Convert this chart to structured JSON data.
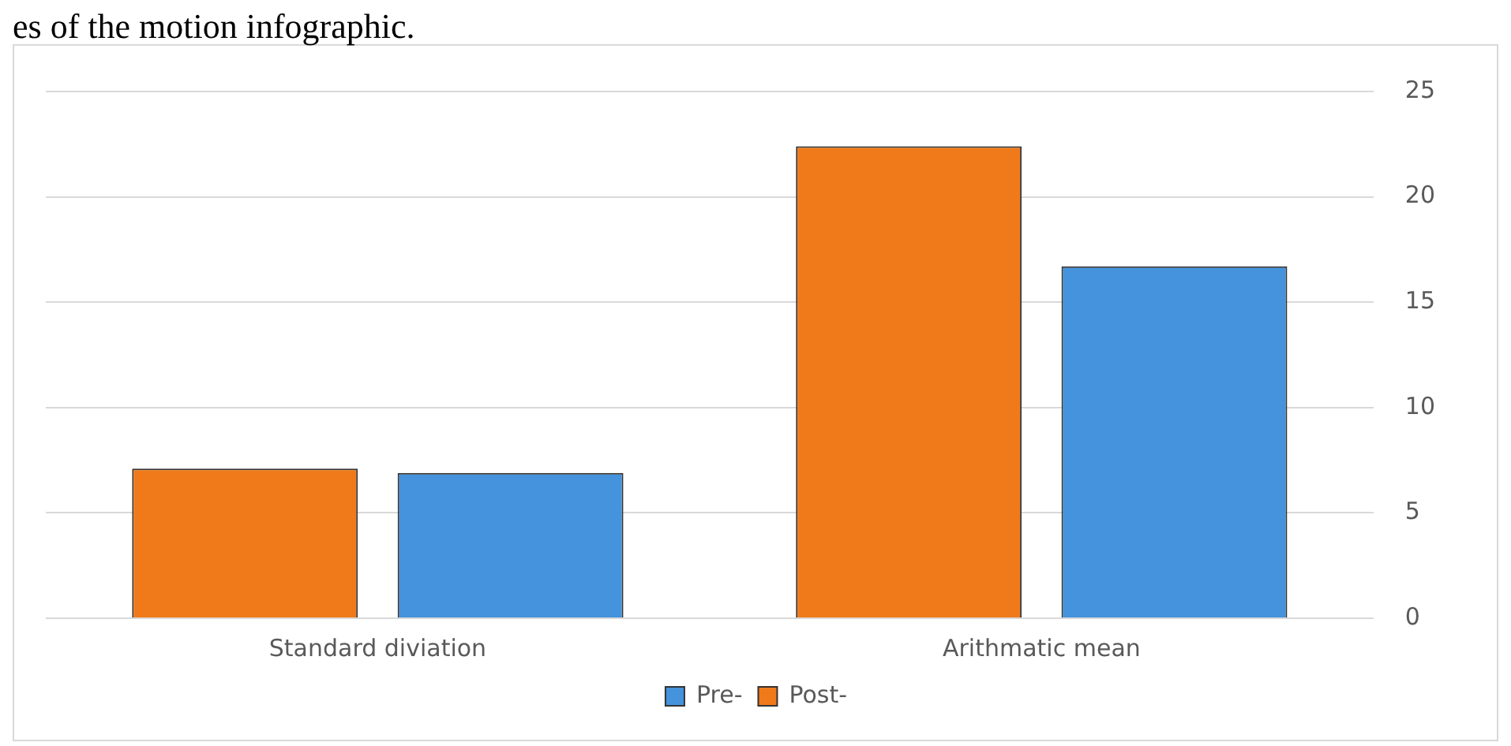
{
  "chart_data": {
    "type": "bar",
    "categories": [
      "Standard diviation",
      "Arithmatic mean"
    ],
    "series": [
      {
        "name": "Post-",
        "color": "#f07a1a",
        "values": [
          7.1,
          22.4
        ]
      },
      {
        "name": "Pre-",
        "color": "#4593dc",
        "values": [
          6.9,
          16.7
        ]
      }
    ],
    "ylim": [
      0,
      25
    ],
    "yticks": [
      0,
      5,
      10,
      15,
      20,
      25
    ],
    "grid": "y",
    "legend": "bottom",
    "annotations": [
      "es of the motion infographic."
    ]
  }
}
